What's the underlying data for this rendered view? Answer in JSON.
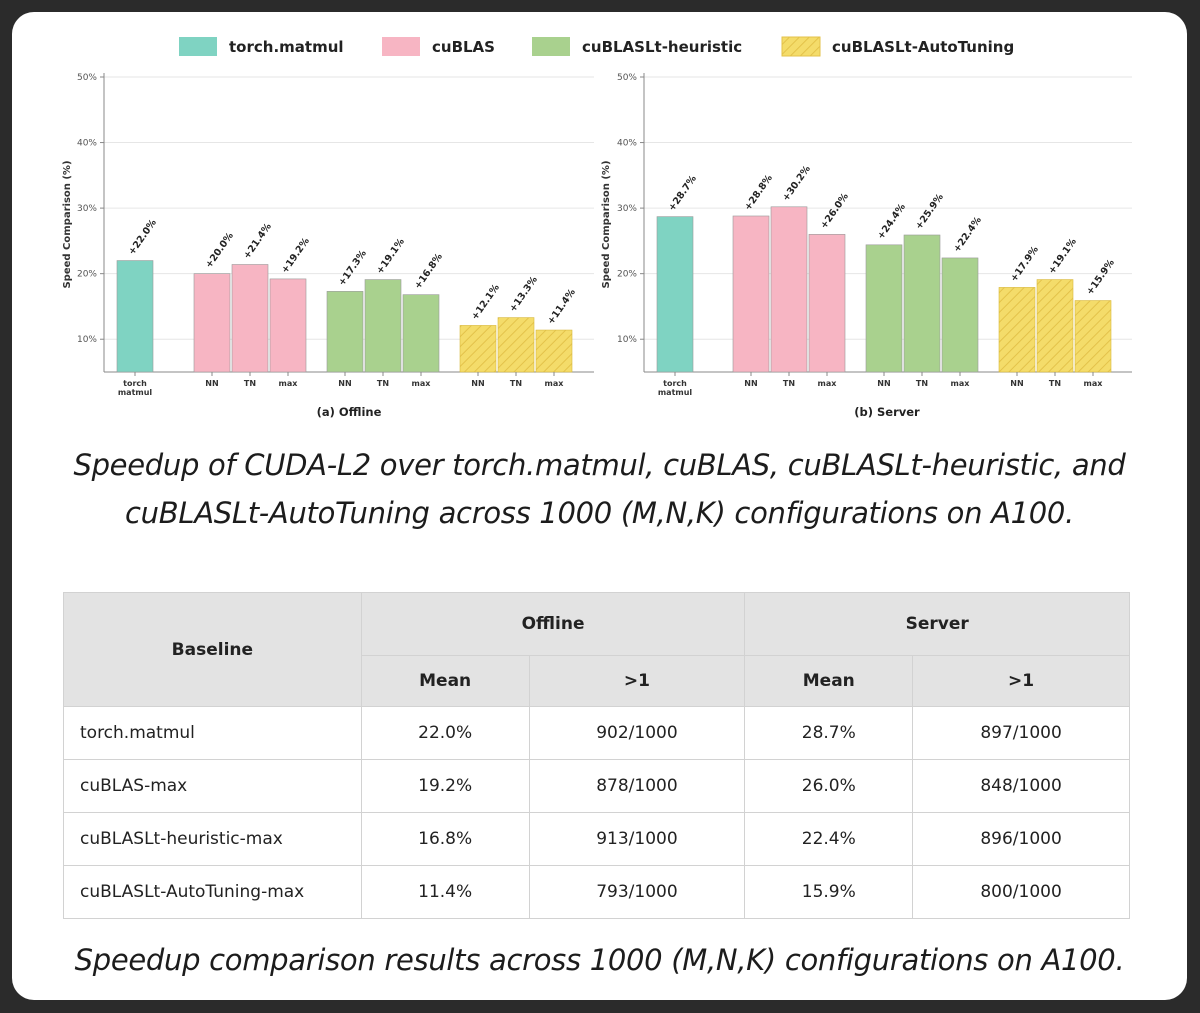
{
  "legend": [
    {
      "label": "torch.matmul",
      "color": "#7fd3c2",
      "pattern": false
    },
    {
      "label": "cuBLAS",
      "color": "#f7b5c3",
      "pattern": false
    },
    {
      "label": "cuBLASLt-heuristic",
      "color": "#a9d18e",
      "pattern": false
    },
    {
      "label": "cuBLASLt-AutoTuning",
      "color": "#f4dc6a",
      "pattern": true
    }
  ],
  "chart_data": [
    {
      "type": "bar",
      "title": "(a) Offline",
      "ylabel": "Speed Comparison (%)",
      "ylim": [
        5,
        50
      ],
      "yticks": [
        10,
        20,
        30,
        40,
        50
      ],
      "ytick_labels": [
        "10%",
        "20%",
        "30%",
        "40%",
        "50%"
      ],
      "grid": true,
      "groups": [
        {
          "series": "torch.matmul",
          "bars": [
            {
              "label": "torch matmul",
              "value": 22.0,
              "data_label": "+22.0%"
            }
          ]
        },
        {
          "series": "cuBLAS",
          "bars": [
            {
              "label": "NN",
              "value": 20.0,
              "data_label": "+20.0%"
            },
            {
              "label": "TN",
              "value": 21.4,
              "data_label": "+21.4%"
            },
            {
              "label": "max",
              "value": 19.2,
              "data_label": "+19.2%"
            }
          ]
        },
        {
          "series": "cuBLASLt-heuristic",
          "bars": [
            {
              "label": "NN",
              "value": 17.3,
              "data_label": "+17.3%"
            },
            {
              "label": "TN",
              "value": 19.1,
              "data_label": "+19.1%"
            },
            {
              "label": "max",
              "value": 16.8,
              "data_label": "+16.8%"
            }
          ]
        },
        {
          "series": "cuBLASLt-AutoTuning",
          "bars": [
            {
              "label": "NN",
              "value": 12.1,
              "data_label": "+12.1%"
            },
            {
              "label": "TN",
              "value": 13.3,
              "data_label": "+13.3%"
            },
            {
              "label": "max",
              "value": 11.4,
              "data_label": "+11.4%"
            }
          ]
        }
      ]
    },
    {
      "type": "bar",
      "title": "(b) Server",
      "ylabel": "Speed Comparison (%)",
      "ylim": [
        5,
        50
      ],
      "yticks": [
        10,
        20,
        30,
        40,
        50
      ],
      "ytick_labels": [
        "10%",
        "20%",
        "30%",
        "40%",
        "50%"
      ],
      "grid": true,
      "groups": [
        {
          "series": "torch.matmul",
          "bars": [
            {
              "label": "torch matmul",
              "value": 28.7,
              "data_label": "+28.7%"
            }
          ]
        },
        {
          "series": "cuBLAS",
          "bars": [
            {
              "label": "NN",
              "value": 28.8,
              "data_label": "+28.8%"
            },
            {
              "label": "TN",
              "value": 30.2,
              "data_label": "+30.2%"
            },
            {
              "label": "max",
              "value": 26.0,
              "data_label": "+26.0%"
            }
          ]
        },
        {
          "series": "cuBLASLt-heuristic",
          "bars": [
            {
              "label": "NN",
              "value": 24.4,
              "data_label": "+24.4%"
            },
            {
              "label": "TN",
              "value": 25.9,
              "data_label": "+25.9%"
            },
            {
              "label": "max",
              "value": 22.4,
              "data_label": "+22.4%"
            }
          ]
        },
        {
          "series": "cuBLASLt-AutoTuning",
          "bars": [
            {
              "label": "NN",
              "value": 17.9,
              "data_label": "+17.9%"
            },
            {
              "label": "TN",
              "value": 19.1,
              "data_label": "+19.1%"
            },
            {
              "label": "max",
              "value": 15.9,
              "data_label": "+15.9%"
            }
          ]
        }
      ]
    }
  ],
  "caption_top": {
    "line1": "Speedup of CUDA-L2 over torch.matmul, cuBLAS, cuBLASLt-heuristic, and",
    "line2": "cuBLASLt-AutoTuning across 1000 (M,N,K) configurations on A100."
  },
  "table": {
    "baseline_header": "Baseline",
    "offline_header": "Offline",
    "server_header": "Server",
    "sub_headers": [
      "Mean",
      ">1",
      "Mean",
      ">1"
    ],
    "rows": [
      [
        "torch.matmul",
        "22.0%",
        "902/1000",
        "28.7%",
        "897/1000"
      ],
      [
        "cuBLAS-max",
        "19.2%",
        "878/1000",
        "26.0%",
        "848/1000"
      ],
      [
        "cuBLASLt-heuristic-max",
        "16.8%",
        "913/1000",
        "22.4%",
        "896/1000"
      ],
      [
        "cuBLASLt-AutoTuning-max",
        "11.4%",
        "793/1000",
        "15.9%",
        "800/1000"
      ]
    ]
  },
  "caption_bottom": "Speedup comparison results across 1000 (M,N,K) configurations on A100."
}
